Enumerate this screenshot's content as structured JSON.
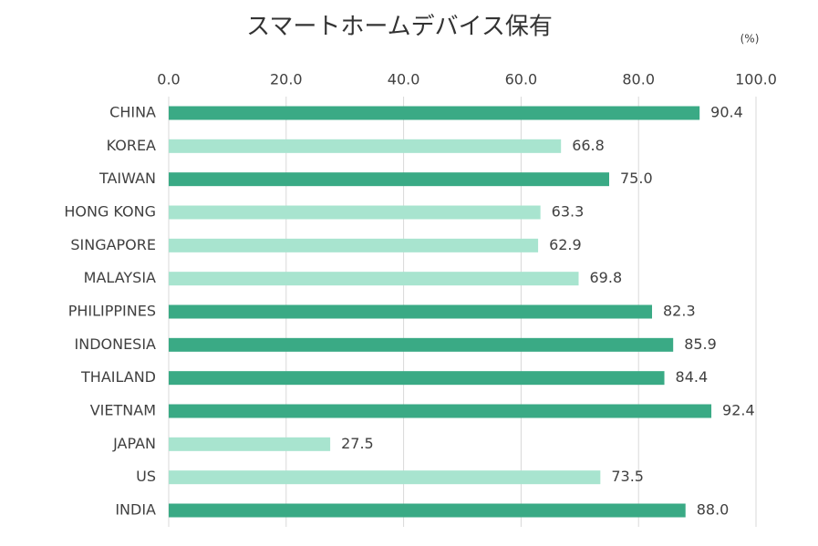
{
  "chart_data": {
    "type": "bar",
    "orientation": "horizontal",
    "title": "スマートホームデバイス保有",
    "unit": "(%)",
    "categories": [
      "CHINA",
      "KOREA",
      "TAIWAN",
      "HONG KONG",
      "SINGAPORE",
      "MALAYSIA",
      "PHILIPPINES",
      "INDONESIA",
      "THAILAND",
      "VIETNAM",
      "JAPAN",
      "US",
      "INDIA"
    ],
    "values": [
      90.4,
      66.8,
      75.0,
      63.3,
      62.9,
      69.8,
      82.3,
      85.9,
      84.4,
      92.4,
      27.5,
      73.5,
      88.0
    ],
    "value_labels": [
      "90.4",
      "66.8",
      "75.0",
      "63.3",
      "62.9",
      "69.8",
      "82.3",
      "85.9",
      "84.4",
      "92.4",
      "27.5",
      "73.5",
      "88.0"
    ],
    "colors": [
      "#3aaa85",
      "#a8e4cf",
      "#3aaa85",
      "#a8e4cf",
      "#a8e4cf",
      "#a8e4cf",
      "#3aaa85",
      "#3aaa85",
      "#3aaa85",
      "#3aaa85",
      "#a8e4cf",
      "#a8e4cf",
      "#3aaa85"
    ],
    "xlim": [
      0,
      100
    ],
    "xticks": [
      {
        "value": 0,
        "label": "0.0"
      },
      {
        "value": 20,
        "label": "20.0"
      },
      {
        "value": 40,
        "label": "40.0"
      },
      {
        "value": 60,
        "label": "60.0"
      },
      {
        "value": 80,
        "label": "80.0"
      },
      {
        "value": 100,
        "label": "100.0"
      }
    ],
    "grid": true
  }
}
